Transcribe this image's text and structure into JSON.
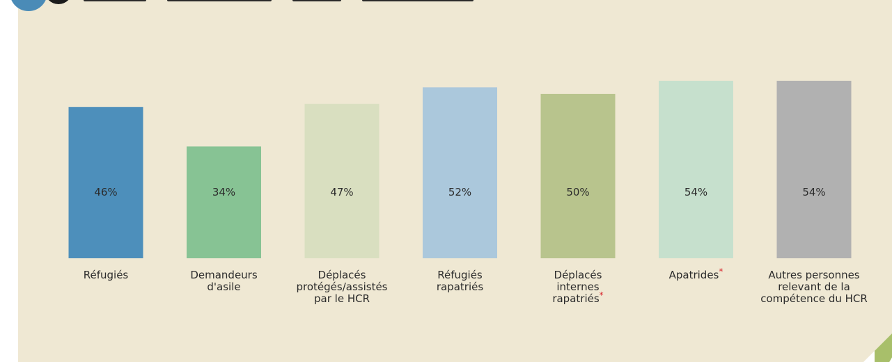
{
  "chart_data": {
    "type": "bar",
    "categories": [
      [
        "Réfugiés"
      ],
      [
        "Demandeurs",
        "d'asile"
      ],
      [
        "Déplacés",
        "protégés/assistés",
        "par le HCR"
      ],
      [
        "Réfugiés",
        "rapatriés"
      ],
      [
        "Déplacés",
        "internes",
        "rapatriés"
      ],
      [
        "Apatrides"
      ],
      [
        "Autres personnes",
        "relevant de la",
        "compétence du HCR"
      ]
    ],
    "category_asterisk": [
      false,
      false,
      false,
      false,
      true,
      true,
      false
    ],
    "values": [
      46,
      34,
      47,
      52,
      50,
      54,
      54
    ],
    "value_labels": [
      "46%",
      "34%",
      "47%",
      "52%",
      "50%",
      "54%",
      "54%"
    ],
    "bar_colors": [
      "#4d8fbb",
      "#87c394",
      "#d9dfc0",
      "#abc8dc",
      "#b8c48d",
      "#c6e0cd",
      "#b1b1b1"
    ],
    "ylim": [
      0,
      54
    ],
    "grid": false,
    "legend": "none",
    "asterisk_symbol": "*",
    "colors": {
      "panel_background": "#efe8d3",
      "text": "#2b2b2b",
      "asterisk": "#d8232a",
      "badge_blue": "#4a8bb7"
    }
  }
}
